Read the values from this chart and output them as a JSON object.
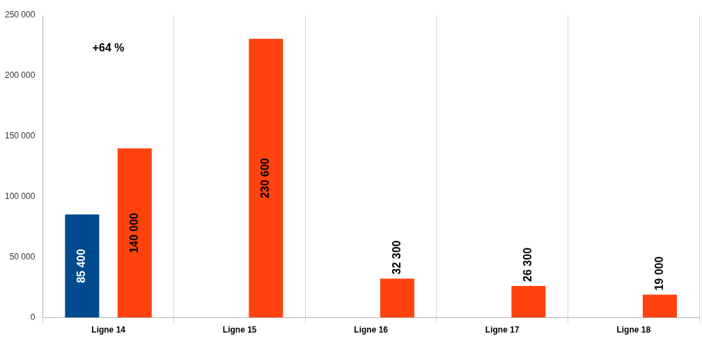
{
  "chart_data": {
    "type": "bar",
    "categories": [
      "Ligne 14",
      "Ligne 15",
      "Ligne 16",
      "Ligne 17",
      "Ligne 18"
    ],
    "series": [
      {
        "color": "#004a8d",
        "values": [
          85400,
          null,
          null,
          null,
          null
        ],
        "value_labels": [
          "85 400",
          null,
          null,
          null,
          null
        ]
      },
      {
        "color": "#ff420e",
        "values": [
          140000,
          230600,
          32300,
          26300,
          19000
        ],
        "value_labels": [
          "140 000",
          "230 600",
          "32 300",
          "26 300",
          "19 000"
        ]
      }
    ],
    "ylim": [
      0,
      250000
    ],
    "yticks": [
      {
        "value": 0,
        "label": "0"
      },
      {
        "value": 50000,
        "label": "50 000"
      },
      {
        "value": 100000,
        "label": "100 000"
      },
      {
        "value": 150000,
        "label": "150 000"
      },
      {
        "value": 200000,
        "label": "200 000"
      },
      {
        "value": 250000,
        "label": "250 000"
      }
    ],
    "grid": "x",
    "legend": false,
    "annotations": [
      "+64 %"
    ]
  }
}
